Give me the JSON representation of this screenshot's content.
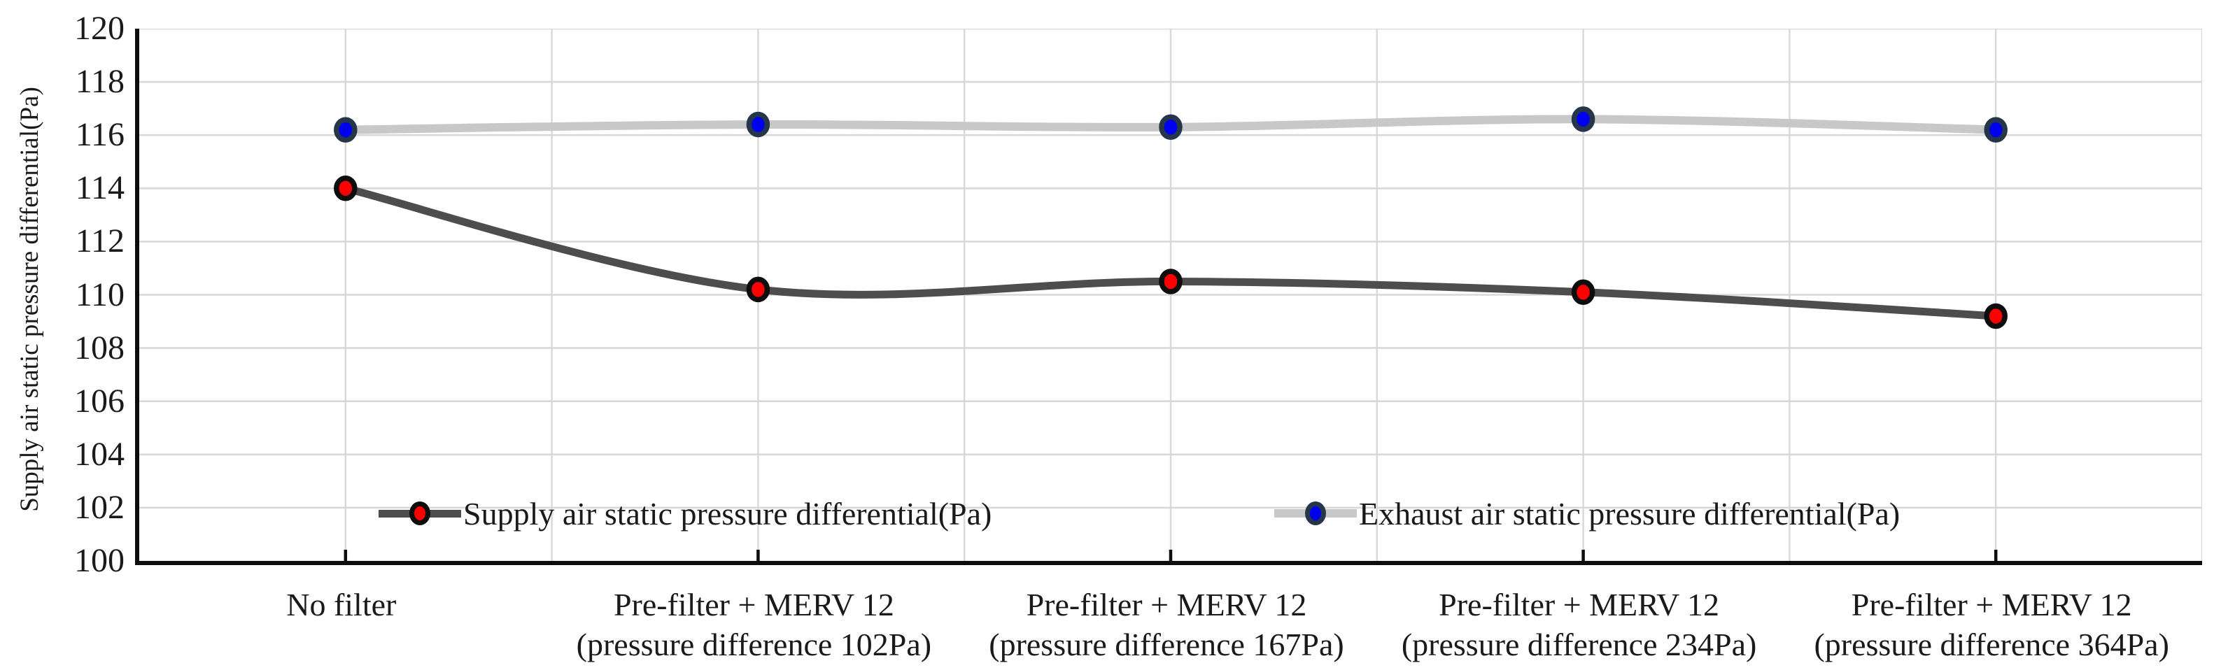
{
  "chart_data": {
    "type": "line",
    "title": "",
    "xlabel": "",
    "ylabel": "Supply air static pressure differential(Pa)",
    "ylim": [
      100,
      120
    ],
    "ytick_step": 2,
    "grid": true,
    "legend_position": "inside-bottom",
    "categories": [
      "No filter",
      "Pre-filter + MERV 12\n(pressure difference 102Pa)",
      "Pre-filter + MERV 12\n(pressure difference 167Pa)",
      "Pre-filter + MERV 12\n(pressure difference 234Pa)",
      "Pre-filter + MERV 12\n(pressure difference 364Pa)"
    ],
    "series": [
      {
        "name": "Supply air static pressure differential(Pa)",
        "values": [
          114.0,
          110.2,
          110.5,
          110.1,
          109.2
        ],
        "line_color": "#4d4d4d",
        "line_width": 11,
        "marker_fill": "#fe0000",
        "marker_edge": "#0d0d0d",
        "smoothed": true
      },
      {
        "name": "Exhaust air static pressure differential(Pa)",
        "values": [
          116.2,
          116.4,
          116.3,
          116.6,
          116.2
        ],
        "line_color": "#c8c8c8",
        "line_width": 12,
        "marker_fill": "#0000f0",
        "marker_edge": "#25354a",
        "smoothed": true
      }
    ]
  },
  "colors": {
    "background": "#ffffff",
    "grid": "#d8d8d8",
    "axis": "#0d0d0d",
    "text": "#1a1a1a"
  }
}
